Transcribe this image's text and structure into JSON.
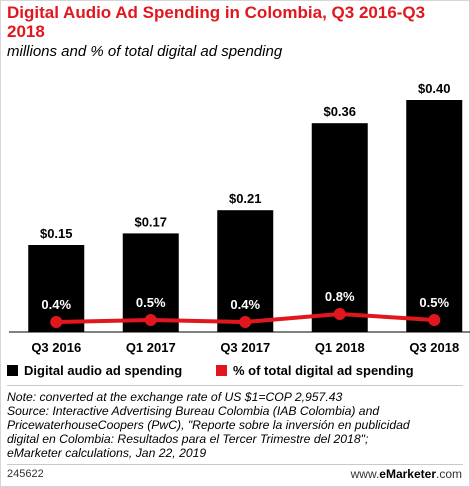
{
  "header": {
    "title": "Digital Audio Ad Spending in Colombia, Q3 2016-Q3 2018",
    "subtitle": "millions and % of total digital ad spending"
  },
  "legend": {
    "items": [
      {
        "label": "Digital audio ad spending",
        "color": "#000000"
      },
      {
        "label": "% of total digital ad spending",
        "color": "#e2171e"
      }
    ]
  },
  "notes": [
    "Note: converted at the exchange rate of US $1=COP 2,957.43",
    "Source: Interactive Advertising Bureau Colombia (IAB Colombia) and",
    "PricewaterhouseCoopers (PwC), \"Reporte sobre la inversión en publicidad",
    "digital en Colombia: Resultados para el Tercer Trimestre del 2018\";",
    "eMarketer calculations, Jan 22, 2019"
  ],
  "footer": {
    "chart_id": "245622",
    "brand_prefix": "www.",
    "brand_name": "eMarketer",
    "brand_suffix": ".com"
  },
  "chart_data": {
    "type": "bar",
    "categories": [
      "Q3 2016",
      "Q1 2017",
      "Q3 2017",
      "Q1 2018",
      "Q3 2018"
    ],
    "series": [
      {
        "name": "Digital audio ad spending",
        "type": "bar",
        "values": [
          0.15,
          0.17,
          0.21,
          0.36,
          0.4
        ],
        "labels": [
          "$0.15",
          "$0.17",
          "$0.21",
          "$0.36",
          "$0.40"
        ],
        "color": "#000000"
      },
      {
        "name": "% of total digital ad spending",
        "type": "line",
        "values": [
          0.4,
          0.5,
          0.4,
          0.8,
          0.5
        ],
        "labels": [
          "0.4%",
          "0.5%",
          "0.4%",
          "0.8%",
          "0.5%"
        ],
        "color": "#e2171e"
      }
    ],
    "grid": false,
    "legend_position": "bottom"
  }
}
